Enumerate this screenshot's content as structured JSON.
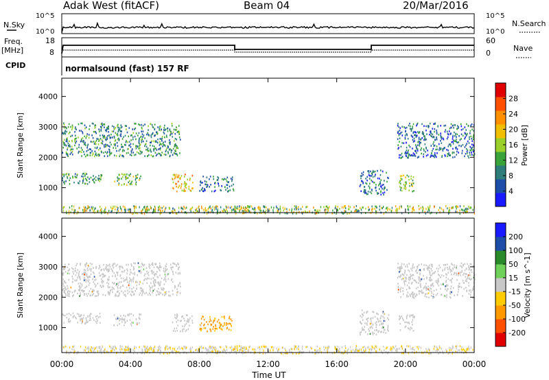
{
  "header": {
    "station": "Adak West (fitACF)",
    "beam": "Beam 04",
    "date": "20/Mar/2016"
  },
  "strip": {
    "nsky_label": "N.Sky",
    "nsearch_label": "N.Search",
    "nsky_ticks": [
      "10^5",
      "10^0"
    ],
    "nsearch_ticks": [
      "10^5",
      "10^0"
    ],
    "freq_label_1": "Freq.",
    "freq_label_2": "[MHz]",
    "freq_ticks": [
      "18",
      "8"
    ],
    "nave_label": "Nave",
    "nave_ticks": [
      "60",
      "0"
    ],
    "cpid_label": "CPID",
    "cpid_text": "normalsound (fast) 157 RF"
  },
  "colors": {
    "power": [
      "#1a1aff",
      "#1e4fa8",
      "#2e7d7a",
      "#3aa33a",
      "#9bd02a",
      "#f0c000",
      "#ff9000",
      "#ff5000",
      "#e00000"
    ],
    "velocity": [
      "#e00000",
      "#ff5000",
      "#ff9900",
      "#ffcc00",
      "#c8c8c8",
      "#6fd05a",
      "#2a8a2a",
      "#1e4fa8",
      "#1a1aff"
    ]
  },
  "chart_data": [
    {
      "type": "heatmap",
      "name": "Power",
      "ylabel": "Slant Range [km]",
      "xlabel": "Time UT",
      "x_ticks": [
        "00:00",
        "04:00",
        "08:00",
        "12:00",
        "16:00",
        "20:00",
        "00:00"
      ],
      "xlim_hours": [
        0,
        24
      ],
      "y_ticks": [
        1000,
        2000,
        3000,
        4000
      ],
      "ylim": [
        180,
        4600
      ],
      "colorbar_label": "Power [dB]",
      "colorbar_ticks": [
        4,
        8,
        12,
        16,
        20,
        24,
        28
      ],
      "colorbar_range": [
        0,
        32
      ],
      "regions": [
        {
          "t0": 0.0,
          "t1": 6.9,
          "r0": 2050,
          "r1": 3150,
          "v": 10
        },
        {
          "t0": 0.0,
          "t1": 2.3,
          "r0": 1150,
          "r1": 1500,
          "v": 12
        },
        {
          "t0": 3.0,
          "t1": 4.6,
          "r0": 1100,
          "r1": 1480,
          "v": 14
        },
        {
          "t0": 6.4,
          "t1": 7.6,
          "r0": 900,
          "r1": 1480,
          "v": 20
        },
        {
          "t0": 8.0,
          "t1": 10.0,
          "r0": 900,
          "r1": 1400,
          "v": 8
        },
        {
          "t0": 10.0,
          "t1": 11.0,
          "r0": 250,
          "r1": 400,
          "v": 18
        },
        {
          "t0": 17.3,
          "t1": 19.0,
          "r0": 800,
          "r1": 1600,
          "v": 8
        },
        {
          "t0": 19.6,
          "t1": 20.5,
          "r0": 900,
          "r1": 1450,
          "v": 14
        },
        {
          "t0": 19.5,
          "t1": 24.0,
          "r0": 2000,
          "r1": 3150,
          "v": 7
        }
      ]
    },
    {
      "type": "heatmap",
      "name": "Velocity",
      "ylabel": "Slant Range [km]",
      "xlabel": "Time UT",
      "x_ticks": [
        "00:00",
        "04:00",
        "08:00",
        "12:00",
        "16:00",
        "20:00",
        "00:00"
      ],
      "xlim_hours": [
        0,
        24
      ],
      "y_ticks": [
        1000,
        2000,
        3000,
        4000
      ],
      "ylim": [
        180,
        4600
      ],
      "colorbar_label": "Velocity [m s^-1]",
      "colorbar_ticks": [
        200,
        100,
        50,
        15,
        -15,
        -50,
        -100,
        -200
      ],
      "regions": [
        {
          "t0": 0.0,
          "t1": 6.9,
          "r0": 2050,
          "r1": 3150,
          "v": 0
        },
        {
          "t0": 0.0,
          "t1": 2.3,
          "r0": 1150,
          "r1": 1500,
          "v": 0
        },
        {
          "t0": 3.0,
          "t1": 4.6,
          "r0": 1100,
          "r1": 1480,
          "v": 0
        },
        {
          "t0": 6.4,
          "t1": 7.6,
          "r0": 900,
          "r1": 1480,
          "v": 0
        },
        {
          "t0": 8.0,
          "t1": 10.0,
          "r0": 900,
          "r1": 1400,
          "v": -60
        },
        {
          "t0": 10.0,
          "t1": 11.0,
          "r0": 250,
          "r1": 400,
          "v": -40
        },
        {
          "t0": 17.3,
          "t1": 19.0,
          "r0": 800,
          "r1": 1600,
          "v": 0
        },
        {
          "t0": 19.6,
          "t1": 20.5,
          "r0": 900,
          "r1": 1450,
          "v": 0
        },
        {
          "t0": 19.5,
          "t1": 24.0,
          "r0": 2000,
          "r1": 3150,
          "v": 0
        }
      ]
    }
  ]
}
